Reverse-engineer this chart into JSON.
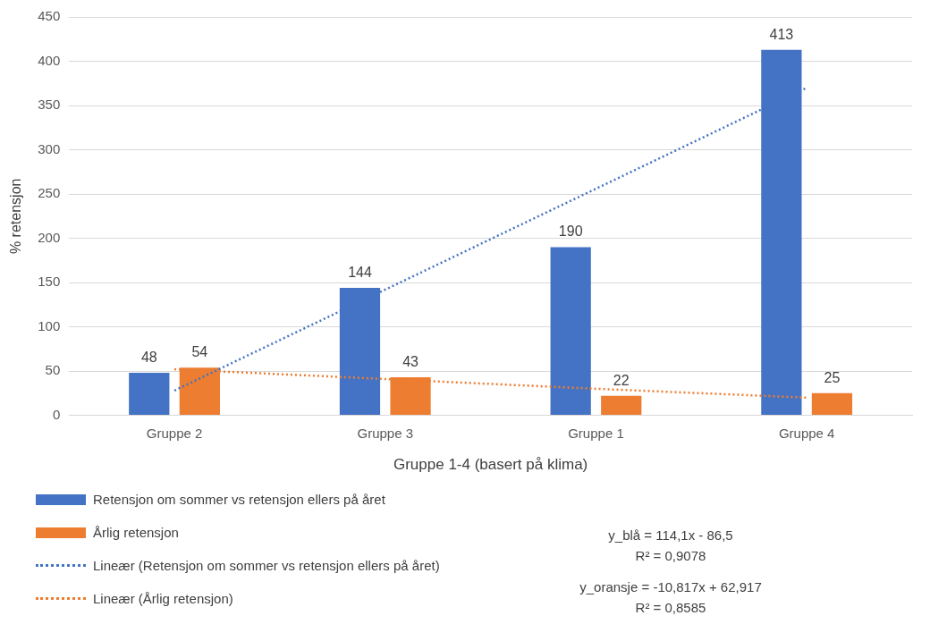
{
  "chart_data": {
    "type": "bar",
    "xlabel": "Gruppe 1-4 (basert på klima)",
    "ylabel": "% retensjon",
    "categories": [
      "Gruppe 2",
      "Gruppe 3",
      "Gruppe 1",
      "Gruppe 4"
    ],
    "series": [
      {
        "name": "Retensjon om sommer vs retensjon ellers på året",
        "color": "#4472c4",
        "values": [
          48,
          144,
          190,
          413
        ],
        "value_labels": [
          "48",
          "144",
          "190",
          "413"
        ]
      },
      {
        "name": "Årlig retensjon",
        "color": "#ed7d31",
        "values": [
          54,
          43,
          22,
          25
        ],
        "value_labels": [
          "54",
          "43",
          "22",
          "25"
        ]
      },
      {
        "name": "Lineær (Retensjon om sommer vs retensjon ellers på året)",
        "type": "line",
        "line_style": "dotted",
        "marker": "none",
        "color": "#4472c4",
        "values": [
          28,
          142,
          256,
          370
        ]
      },
      {
        "name": "Lineær (Årlig retensjon)",
        "type": "line",
        "line_style": "dotted",
        "marker": "none",
        "color": "#ed7d31",
        "values": [
          52,
          41,
          30,
          20
        ]
      }
    ],
    "ylim": [
      0,
      450
    ],
    "yticks": [
      0,
      50,
      100,
      150,
      200,
      250,
      300,
      350,
      400,
      450
    ],
    "grid": "y",
    "legend": "bottom",
    "annotations": [
      "y_blå = 114,1x - 86,5",
      "R² = 0,9078",
      "y_oransje = -10,817x + 62,917",
      "R² = 0,8585"
    ]
  }
}
